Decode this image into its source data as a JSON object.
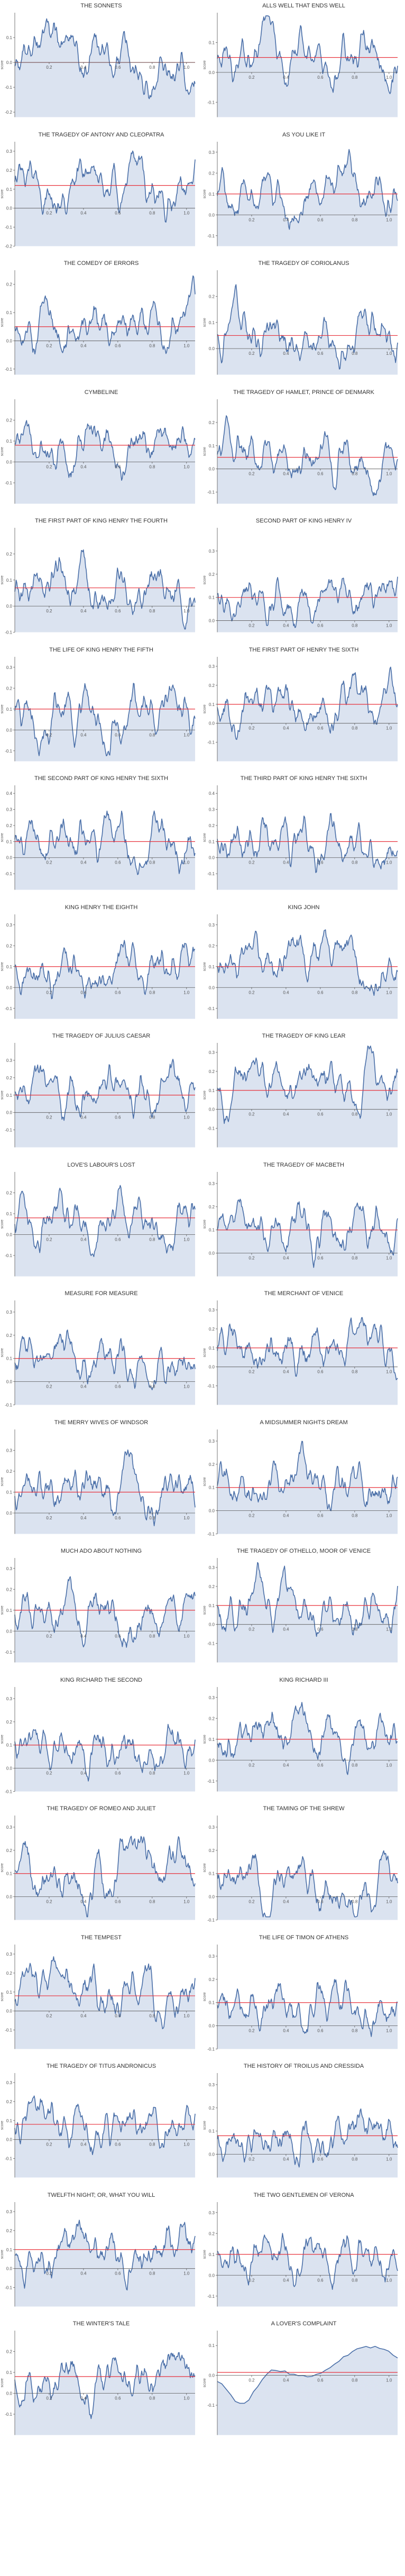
{
  "colors": {
    "line": "#4a6fa8",
    "fill": "#dbe3f0",
    "mean": "#e8323c",
    "axis": "#555555",
    "text": "#333333"
  },
  "chart_data": [
    {
      "type": "area",
      "title": "THE SONNETS",
      "xlabel": "",
      "ylabel": "score",
      "xlim": [
        0,
        1.05
      ],
      "ylim": [
        -0.22,
        0.2
      ],
      "yticks": [
        -0.2,
        -0.1,
        0.0,
        0.1
      ],
      "xticks": [
        0.2,
        0.4,
        0.6,
        0.8,
        1.0
      ],
      "mean": 0.0
    },
    {
      "type": "area",
      "title": "ALLS WELL THAT ENDS WELL",
      "xlabel": "",
      "ylabel": "score",
      "xlim": [
        0,
        1.05
      ],
      "ylim": [
        -0.15,
        0.2
      ],
      "yticks": [
        -0.1,
        0.0,
        0.1
      ],
      "xticks": [
        0.2,
        0.4,
        0.6,
        0.8,
        1.0
      ],
      "mean": 0.05
    },
    {
      "type": "area",
      "title": "THE TRAGEDY OF ANTONY AND CLEOPATRA",
      "xlabel": "",
      "ylabel": "score",
      "xlim": [
        0,
        1.05
      ],
      "ylim": [
        -0.2,
        0.35
      ],
      "yticks": [
        -0.2,
        -0.1,
        0.0,
        0.1,
        0.2,
        0.3
      ],
      "xticks": [
        0.2,
        0.4,
        0.6,
        0.8,
        1.0
      ],
      "mean": 0.12
    },
    {
      "type": "area",
      "title": "AS YOU LIKE IT",
      "xlabel": "",
      "ylabel": "score",
      "xlim": [
        0,
        1.05
      ],
      "ylim": [
        -0.15,
        0.35
      ],
      "yticks": [
        -0.1,
        0.0,
        0.1,
        0.2,
        0.3
      ],
      "xticks": [
        0.2,
        0.4,
        0.6,
        0.8,
        1.0
      ],
      "mean": 0.1
    },
    {
      "type": "area",
      "title": "THE COMEDY OF ERRORS",
      "xlabel": "",
      "ylabel": "score",
      "xlim": [
        0,
        1.05
      ],
      "ylim": [
        -0.12,
        0.25
      ],
      "yticks": [
        -0.1,
        0.0,
        0.1,
        0.2
      ],
      "xticks": [
        0.2,
        0.4,
        0.6,
        0.8,
        1.0
      ],
      "mean": 0.05
    },
    {
      "type": "area",
      "title": "THE TRAGEDY OF CORIOLANUS",
      "xlabel": "",
      "ylabel": "score",
      "xlim": [
        0,
        1.05
      ],
      "ylim": [
        -0.1,
        0.3
      ],
      "yticks": [
        0.0,
        0.1,
        0.2
      ],
      "xticks": [
        0.2,
        0.4,
        0.6,
        0.8,
        1.0
      ],
      "mean": 0.05
    },
    {
      "type": "area",
      "title": "CYMBELINE",
      "xlabel": "",
      "ylabel": "score",
      "xlim": [
        0,
        1.05
      ],
      "ylim": [
        -0.2,
        0.3
      ],
      "yticks": [
        -0.1,
        0.0,
        0.1,
        0.2
      ],
      "xticks": [
        0.2,
        0.4,
        0.6,
        0.8,
        1.0
      ],
      "mean": 0.08
    },
    {
      "type": "area",
      "title": "THE TRAGEDY OF HAMLET, PRINCE OF DENMARK",
      "xlabel": "",
      "ylabel": "score",
      "xlim": [
        0,
        1.05
      ],
      "ylim": [
        -0.15,
        0.3
      ],
      "yticks": [
        -0.1,
        0.0,
        0.1,
        0.2
      ],
      "xticks": [
        0.2,
        0.4,
        0.6,
        0.8,
        1.0
      ],
      "mean": 0.05
    },
    {
      "type": "area",
      "title": "THE FIRST PART OF KING HENRY THE FOURTH",
      "xlabel": "",
      "ylabel": "score",
      "xlim": [
        0,
        1.05
      ],
      "ylim": [
        -0.1,
        0.3
      ],
      "yticks": [
        -0.1,
        0.0,
        0.1,
        0.2
      ],
      "xticks": [
        0.2,
        0.4,
        0.6,
        0.8,
        1.0
      ],
      "mean": 0.07
    },
    {
      "type": "area",
      "title": "SECOND PART OF KING HENRY IV",
      "xlabel": "",
      "ylabel": "score",
      "xlim": [
        0,
        1.05
      ],
      "ylim": [
        -0.05,
        0.4
      ],
      "yticks": [
        0.0,
        0.1,
        0.2,
        0.3
      ],
      "xticks": [
        0.2,
        0.4,
        0.6,
        0.8,
        1.0
      ],
      "mean": 0.1
    },
    {
      "type": "area",
      "title": "THE LIFE OF KING HENRY THE FIFTH",
      "xlabel": "",
      "ylabel": "score",
      "xlim": [
        0,
        1.05
      ],
      "ylim": [
        -0.15,
        0.35
      ],
      "yticks": [
        -0.1,
        0.0,
        0.1,
        0.2,
        0.3
      ],
      "xticks": [
        0.2,
        0.4,
        0.6,
        0.8,
        1.0
      ],
      "mean": 0.1
    },
    {
      "type": "area",
      "title": "THE FIRST PART OF HENRY THE SIXTH",
      "xlabel": "",
      "ylabel": "score",
      "xlim": [
        0,
        1.05
      ],
      "ylim": [
        -0.2,
        0.35
      ],
      "yticks": [
        -0.1,
        0.0,
        0.1,
        0.2,
        0.3
      ],
      "xticks": [
        0.2,
        0.4,
        0.6,
        0.8,
        1.0
      ],
      "mean": 0.1
    },
    {
      "type": "area",
      "title": "THE SECOND PART OF KING HENRY THE SIXTH",
      "xlabel": "",
      "ylabel": "score",
      "xlim": [
        0,
        1.05
      ],
      "ylim": [
        -0.2,
        0.45
      ],
      "yticks": [
        -0.1,
        0.0,
        0.1,
        0.2,
        0.3,
        0.4
      ],
      "xticks": [
        0.2,
        0.4,
        0.6,
        0.8,
        1.0
      ],
      "mean": 0.1
    },
    {
      "type": "area",
      "title": "THE THIRD PART OF KING HENRY THE SIXTH",
      "xlabel": "",
      "ylabel": "score",
      "xlim": [
        0,
        1.05
      ],
      "ylim": [
        -0.2,
        0.45
      ],
      "yticks": [
        -0.1,
        0.0,
        0.1,
        0.2,
        0.3,
        0.4
      ],
      "xticks": [
        0.2,
        0.4,
        0.6,
        0.8,
        1.0
      ],
      "mean": 0.1
    },
    {
      "type": "area",
      "title": "KING HENRY THE EIGHTH",
      "xlabel": "",
      "ylabel": "score",
      "xlim": [
        0,
        1.05
      ],
      "ylim": [
        -0.15,
        0.35
      ],
      "yticks": [
        -0.1,
        0.0,
        0.1,
        0.2,
        0.3
      ],
      "xticks": [
        0.2,
        0.4,
        0.6,
        0.8,
        1.0
      ],
      "mean": 0.1
    },
    {
      "type": "area",
      "title": "KING JOHN",
      "xlabel": "",
      "ylabel": "score",
      "xlim": [
        0,
        1.05
      ],
      "ylim": [
        -0.15,
        0.35
      ],
      "yticks": [
        -0.1,
        0.0,
        0.1,
        0.2,
        0.3
      ],
      "xticks": [
        0.2,
        0.4,
        0.6,
        0.8,
        1.0
      ],
      "mean": 0.1
    },
    {
      "type": "area",
      "title": "THE TRAGEDY OF JULIUS CAESAR",
      "xlabel": "",
      "ylabel": "score",
      "xlim": [
        0,
        1.05
      ],
      "ylim": [
        -0.2,
        0.4
      ],
      "yticks": [
        -0.1,
        0.0,
        0.1,
        0.2,
        0.3
      ],
      "xticks": [
        0.2,
        0.4,
        0.6,
        0.8,
        1.0
      ],
      "mean": 0.1
    },
    {
      "type": "area",
      "title": "THE TRAGEDY OF KING LEAR",
      "xlabel": "",
      "ylabel": "score",
      "xlim": [
        0,
        1.05
      ],
      "ylim": [
        -0.2,
        0.35
      ],
      "yticks": [
        -0.1,
        0.0,
        0.1,
        0.2,
        0.3
      ],
      "xticks": [
        0.2,
        0.4,
        0.6,
        0.8,
        1.0
      ],
      "mean": 0.1
    },
    {
      "type": "area",
      "title": "LOVE'S LABOUR'S LOST",
      "xlabel": "",
      "ylabel": "score",
      "xlim": [
        0,
        1.05
      ],
      "ylim": [
        -0.2,
        0.3
      ],
      "yticks": [
        -0.1,
        0.0,
        0.1,
        0.2
      ],
      "xticks": [
        0.2,
        0.4,
        0.6,
        0.8,
        1.0
      ],
      "mean": 0.08
    },
    {
      "type": "area",
      "title": "THE TRAGEDY OF MACBETH",
      "xlabel": "",
      "ylabel": "score",
      "xlim": [
        0,
        1.05
      ],
      "ylim": [
        -0.1,
        0.35
      ],
      "yticks": [
        0.0,
        0.1,
        0.2,
        0.3
      ],
      "xticks": [
        0.2,
        0.4,
        0.6,
        0.8,
        1.0
      ],
      "mean": 0.1
    },
    {
      "type": "area",
      "title": "MEASURE FOR MEASURE",
      "xlabel": "",
      "ylabel": "score",
      "xlim": [
        0,
        1.05
      ],
      "ylim": [
        -0.1,
        0.35
      ],
      "yticks": [
        -0.1,
        0.0,
        0.1,
        0.2,
        0.3
      ],
      "xticks": [
        0.2,
        0.4,
        0.6,
        0.8,
        1.0
      ],
      "mean": 0.1
    },
    {
      "type": "area",
      "title": "THE MERCHANT OF VENICE",
      "xlabel": "",
      "ylabel": "score",
      "xlim": [
        0,
        1.05
      ],
      "ylim": [
        -0.2,
        0.35
      ],
      "yticks": [
        -0.1,
        0.0,
        0.1,
        0.2,
        0.3
      ],
      "xticks": [
        0.2,
        0.4,
        0.6,
        0.8,
        1.0
      ],
      "mean": 0.1
    },
    {
      "type": "area",
      "title": "THE MERRY WIVES OF WINDSOR",
      "xlabel": "",
      "ylabel": "score",
      "xlim": [
        0,
        1.05
      ],
      "ylim": [
        -0.1,
        0.4
      ],
      "yticks": [
        0.0,
        0.1,
        0.2,
        0.3
      ],
      "xticks": [
        0.2,
        0.4,
        0.6,
        0.8,
        1.0
      ],
      "mean": 0.1
    },
    {
      "type": "area",
      "title": "A MIDSUMMER NIGHTS DREAM",
      "xlabel": "",
      "ylabel": "score",
      "xlim": [
        0,
        1.05
      ],
      "ylim": [
        -0.1,
        0.35
      ],
      "yticks": [
        -0.1,
        0.0,
        0.1,
        0.2,
        0.3
      ],
      "xticks": [
        0.2,
        0.4,
        0.6,
        0.8,
        1.0
      ],
      "mean": 0.1
    },
    {
      "type": "area",
      "title": "MUCH ADO ABOUT NOTHING",
      "xlabel": "",
      "ylabel": "score",
      "xlim": [
        0,
        1.05
      ],
      "ylim": [
        -0.15,
        0.35
      ],
      "yticks": [
        -0.1,
        0.0,
        0.1,
        0.2,
        0.3
      ],
      "xticks": [
        0.2,
        0.4,
        0.6,
        0.8,
        1.0
      ],
      "mean": 0.1
    },
    {
      "type": "area",
      "title": "THE TRAGEDY OF OTHELLO, MOOR OF VENICE",
      "xlabel": "",
      "ylabel": "score",
      "xlim": [
        0,
        1.05
      ],
      "ylim": [
        -0.2,
        0.35
      ],
      "yticks": [
        -0.1,
        0.0,
        0.1,
        0.2,
        0.3
      ],
      "xticks": [
        0.2,
        0.4,
        0.6,
        0.8,
        1.0
      ],
      "mean": 0.1
    },
    {
      "type": "area",
      "title": "KING RICHARD THE SECOND",
      "xlabel": "",
      "ylabel": "score",
      "xlim": [
        0,
        1.05
      ],
      "ylim": [
        -0.1,
        0.35
      ],
      "yticks": [
        -0.1,
        0.0,
        0.1,
        0.2,
        0.3
      ],
      "xticks": [
        0.2,
        0.4,
        0.6,
        0.8,
        1.0
      ],
      "mean": 0.1
    },
    {
      "type": "area",
      "title": "KING RICHARD III",
      "xlabel": "",
      "ylabel": "score",
      "xlim": [
        0,
        1.05
      ],
      "ylim": [
        -0.15,
        0.35
      ],
      "yticks": [
        -0.1,
        0.0,
        0.1,
        0.2,
        0.3
      ],
      "xticks": [
        0.2,
        0.4,
        0.6,
        0.8,
        1.0
      ],
      "mean": 0.1
    },
    {
      "type": "area",
      "title": "THE TRAGEDY OF ROMEO AND JULIET",
      "xlabel": "",
      "ylabel": "score",
      "xlim": [
        0,
        1.05
      ],
      "ylim": [
        -0.1,
        0.35
      ],
      "yticks": [
        0.0,
        0.1,
        0.2,
        0.3
      ],
      "xticks": [
        0.2,
        0.4,
        0.6,
        0.8,
        1.0
      ],
      "mean": 0.1
    },
    {
      "type": "area",
      "title": "THE TAMING OF THE SHREW",
      "xlabel": "",
      "ylabel": "score",
      "xlim": [
        0,
        1.05
      ],
      "ylim": [
        -0.1,
        0.35
      ],
      "yticks": [
        -0.1,
        0.0,
        0.1,
        0.2,
        0.3
      ],
      "xticks": [
        0.2,
        0.4,
        0.6,
        0.8,
        1.0
      ],
      "mean": 0.1
    },
    {
      "type": "area",
      "title": "THE TEMPEST",
      "xlabel": "",
      "ylabel": "score",
      "xlim": [
        0,
        1.05
      ],
      "ylim": [
        -0.2,
        0.35
      ],
      "yticks": [
        -0.1,
        0.0,
        0.1,
        0.2,
        0.3
      ],
      "xticks": [
        0.2,
        0.4,
        0.6,
        0.8,
        1.0
      ],
      "mean": 0.08
    },
    {
      "type": "area",
      "title": "THE LIFE OF TIMON OF ATHENS",
      "xlabel": "",
      "ylabel": "score",
      "xlim": [
        0,
        1.05
      ],
      "ylim": [
        -0.1,
        0.35
      ],
      "yticks": [
        -0.1,
        0.0,
        0.1,
        0.2,
        0.3
      ],
      "xticks": [
        0.2,
        0.4,
        0.6,
        0.8,
        1.0
      ],
      "mean": 0.1
    },
    {
      "type": "area",
      "title": "THE TRAGEDY OF TITUS ANDRONICUS",
      "xlabel": "",
      "ylabel": "score",
      "xlim": [
        0,
        1.05
      ],
      "ylim": [
        -0.2,
        0.35
      ],
      "yticks": [
        -0.1,
        0.0,
        0.1,
        0.2,
        0.3
      ],
      "xticks": [
        0.2,
        0.4,
        0.6,
        0.8,
        1.0
      ],
      "mean": 0.08
    },
    {
      "type": "area",
      "title": "THE HISTORY OF TROILUS AND CRESSIDA",
      "xlabel": "",
      "ylabel": "score",
      "xlim": [
        0,
        1.05
      ],
      "ylim": [
        -0.1,
        0.35
      ],
      "yticks": [
        0.0,
        0.1,
        0.2,
        0.3
      ],
      "xticks": [
        0.2,
        0.4,
        0.6,
        0.8,
        1.0
      ],
      "mean": 0.08
    },
    {
      "type": "area",
      "title": "TWELFTH NIGHT; OR, WHAT YOU WILL",
      "xlabel": "",
      "ylabel": "score",
      "xlim": [
        0,
        1.05
      ],
      "ylim": [
        -0.2,
        0.35
      ],
      "yticks": [
        -0.1,
        0.0,
        0.1,
        0.2,
        0.3
      ],
      "xticks": [
        0.2,
        0.4,
        0.6,
        0.8,
        1.0
      ],
      "mean": 0.1
    },
    {
      "type": "area",
      "title": "THE TWO GENTLEMEN OF VERONA",
      "xlabel": "",
      "ylabel": "score",
      "xlim": [
        0,
        1.05
      ],
      "ylim": [
        -0.15,
        0.35
      ],
      "yticks": [
        -0.1,
        0.0,
        0.1,
        0.2,
        0.3
      ],
      "xticks": [
        0.2,
        0.4,
        0.6,
        0.8,
        1.0
      ],
      "mean": 0.1
    },
    {
      "type": "area",
      "title": "THE WINTER'S TALE",
      "xlabel": "",
      "ylabel": "score",
      "xlim": [
        0,
        1.05
      ],
      "ylim": [
        -0.2,
        0.3
      ],
      "yticks": [
        -0.1,
        0.0,
        0.1,
        0.2
      ],
      "xticks": [
        0.2,
        0.4,
        0.6,
        0.8,
        1.0
      ],
      "mean": 0.08
    },
    {
      "type": "area",
      "title": "A LOVER'S COMPLAINT",
      "xlabel": "",
      "ylabel": "score",
      "xlim": [
        0,
        1.05
      ],
      "ylim": [
        -0.2,
        0.15
      ],
      "yticks": [
        -0.1,
        0.0,
        0.1
      ],
      "xticks": [
        0.2,
        0.4,
        0.6,
        0.8,
        1.0
      ],
      "mean": 0.01,
      "smooth": true
    }
  ]
}
